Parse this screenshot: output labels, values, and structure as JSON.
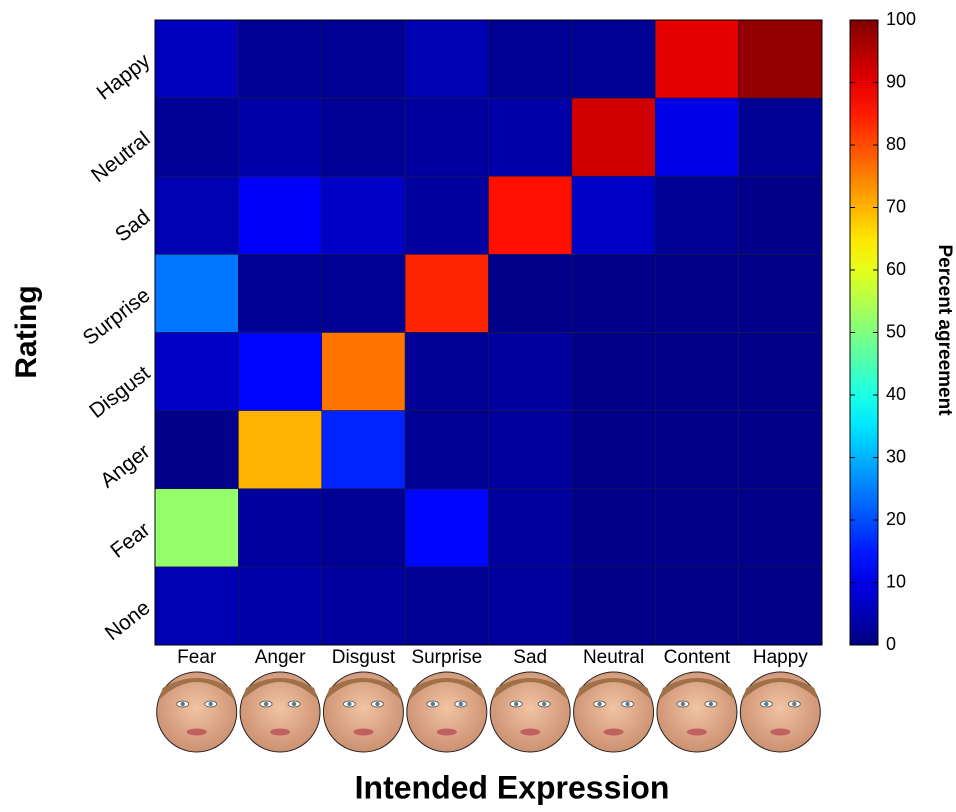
{
  "chart_data": {
    "type": "heatmap",
    "x_label": "Intended Expression",
    "y_label": "Rating",
    "colorbar_label": "Percent agreement",
    "colormap": "jet",
    "x_categories": [
      "Fear",
      "Anger",
      "Disgust",
      "Surprise",
      "Sad",
      "Neutral",
      "Content",
      "Happy"
    ],
    "y_categories": [
      "Happy",
      "Neutral",
      "Sad",
      "Surprise",
      "Disgust",
      "Anger",
      "Fear",
      "None"
    ],
    "values": [
      [
        6,
        2,
        2,
        5,
        2,
        2,
        90,
        98
      ],
      [
        2,
        4,
        2,
        3,
        4,
        92,
        10,
        2
      ],
      [
        5,
        12,
        7,
        3,
        86,
        7,
        2,
        1
      ],
      [
        24,
        2,
        2,
        84,
        1,
        1,
        1,
        1
      ],
      [
        7,
        13,
        76,
        2,
        3,
        1,
        1,
        1
      ],
      [
        1,
        70,
        16,
        2,
        3,
        1,
        1,
        1
      ],
      [
        52,
        3,
        2,
        13,
        3,
        1,
        1,
        1
      ],
      [
        5,
        4,
        3,
        2,
        3,
        1,
        1,
        1
      ]
    ],
    "zlim": [
      0,
      100
    ],
    "zticks": [
      0,
      10,
      20,
      30,
      40,
      50,
      60,
      70,
      80,
      90,
      100
    ]
  }
}
